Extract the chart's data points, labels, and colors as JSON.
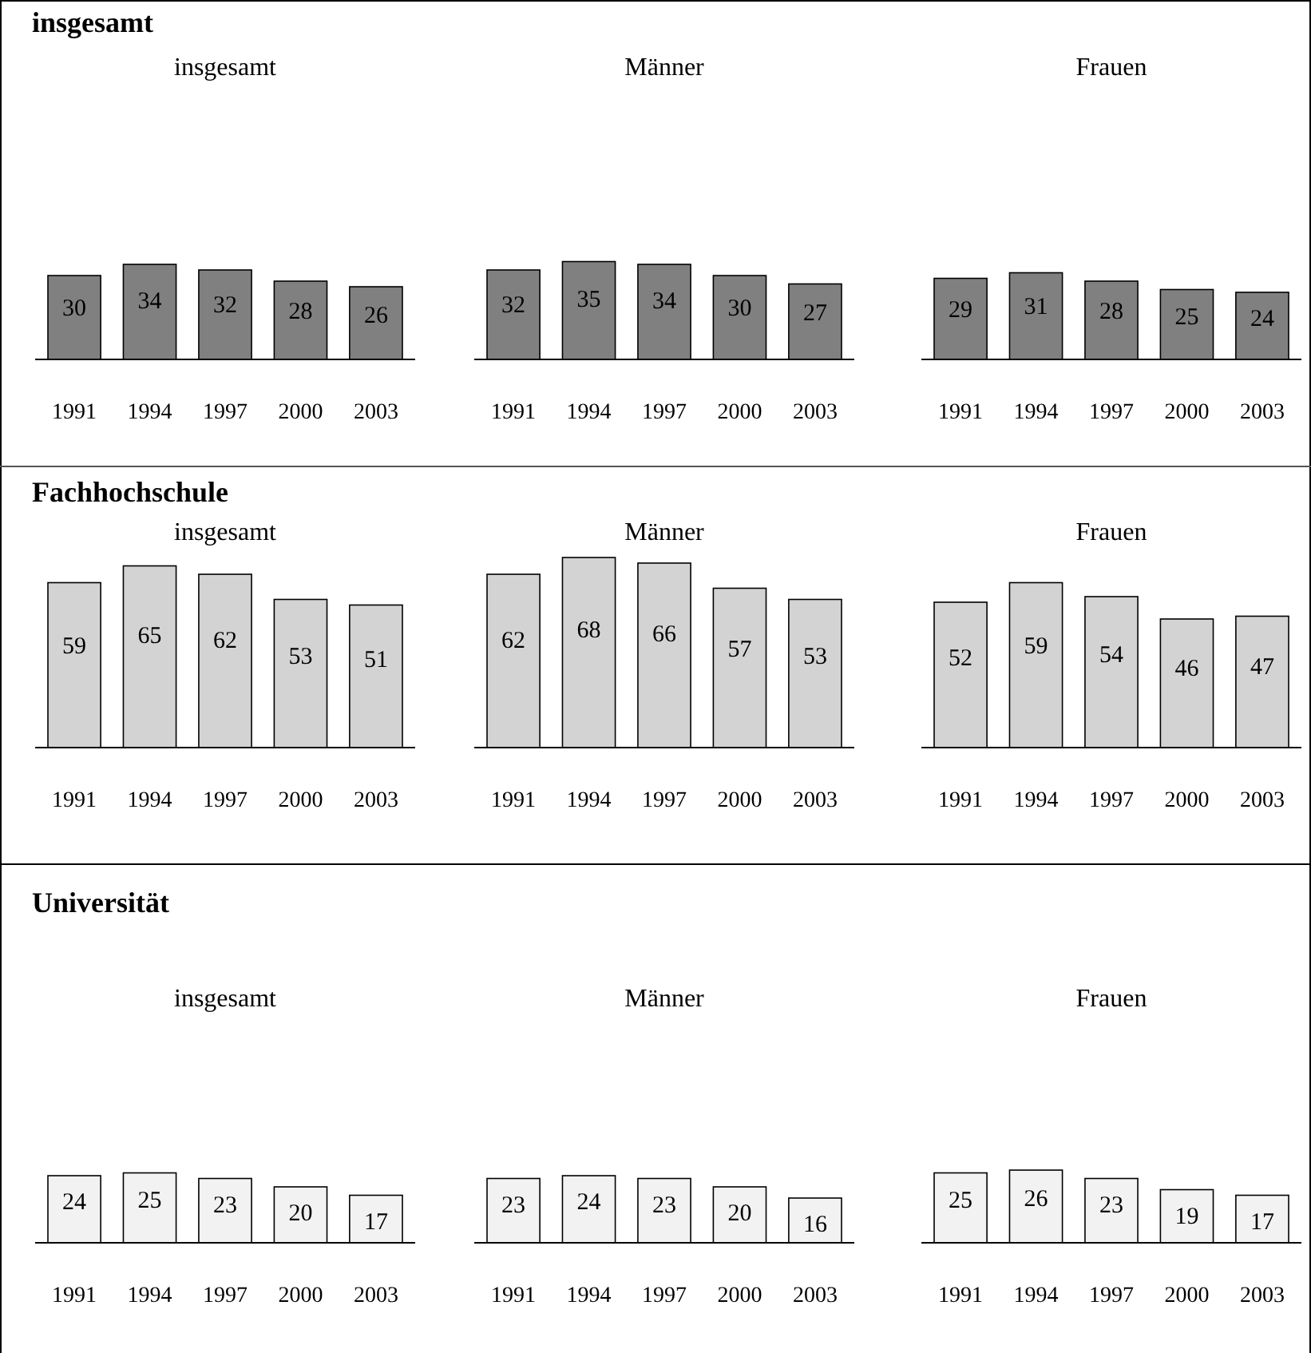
{
  "chart_data": [
    {
      "type": "other",
      "title": "insgesamt"
    },
    {
      "type": "bar",
      "title": "insgesamt",
      "categories": [
        "1991",
        "1994",
        "1997",
        "2000",
        "2003"
      ],
      "values": [
        30,
        34,
        32,
        28,
        26
      ],
      "color": "#808080",
      "data_labels": true,
      "tick_labels": "x"
    },
    {
      "type": "bar",
      "title": "Männer",
      "categories": [
        "1991",
        "1994",
        "1997",
        "2000",
        "2003"
      ],
      "values": [
        32,
        35,
        34,
        30,
        27
      ],
      "color": "#808080",
      "data_labels": true,
      "tick_labels": "x"
    },
    {
      "type": "bar",
      "title": "Frauen",
      "categories": [
        "1991",
        "1994",
        "1997",
        "2000",
        "2003"
      ],
      "values": [
        29,
        31,
        28,
        25,
        24
      ],
      "color": "#808080",
      "data_labels": true,
      "tick_labels": "x"
    },
    {
      "type": "other",
      "title": "Fachhochschule"
    },
    {
      "type": "bar",
      "title": "insgesamt",
      "categories": [
        "1991",
        "1994",
        "1997",
        "2000",
        "2003"
      ],
      "values": [
        59,
        65,
        62,
        53,
        51
      ],
      "color": "#d3d3d3",
      "data_labels": true,
      "tick_labels": "x"
    },
    {
      "type": "bar",
      "title": "Männer",
      "categories": [
        "1991",
        "1994",
        "1997",
        "2000",
        "2003"
      ],
      "values": [
        62,
        68,
        66,
        57,
        53
      ],
      "color": "#d3d3d3",
      "data_labels": true,
      "tick_labels": "x"
    },
    {
      "type": "bar",
      "title": "Frauen",
      "categories": [
        "1991",
        "1994",
        "1997",
        "2000",
        "2003"
      ],
      "values": [
        52,
        59,
        54,
        46,
        47
      ],
      "color": "#d3d3d3",
      "data_labels": true,
      "tick_labels": "x"
    },
    {
      "type": "other",
      "title": "Universität"
    },
    {
      "type": "bar",
      "title": "insgesamt",
      "categories": [
        "1991",
        "1994",
        "1997",
        "2000",
        "2003"
      ],
      "values": [
        24,
        25,
        23,
        20,
        17
      ],
      "color": "#f2f2f2",
      "data_labels": true,
      "tick_labels": "x"
    },
    {
      "type": "bar",
      "title": "Männer",
      "categories": [
        "1991",
        "1994",
        "1997",
        "2000",
        "2003"
      ],
      "values": [
        23,
        24,
        23,
        20,
        16
      ],
      "color": "#f2f2f2",
      "data_labels": true,
      "tick_labels": "x"
    },
    {
      "type": "bar",
      "title": "Frauen",
      "categories": [
        "1991",
        "1994",
        "1997",
        "2000",
        "2003"
      ],
      "values": [
        25,
        26,
        23,
        19,
        17
      ],
      "color": "#f2f2f2",
      "data_labels": true,
      "tick_labels": "x"
    }
  ]
}
